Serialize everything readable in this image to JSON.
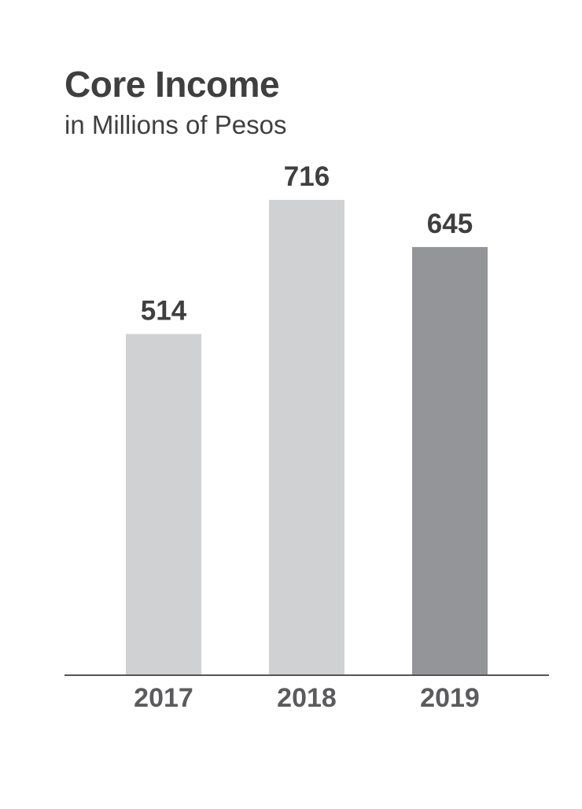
{
  "chart_data": {
    "type": "bar",
    "title": "Core Income",
    "subtitle": "in Millions of Pesos",
    "categories": [
      "2017",
      "2018",
      "2019"
    ],
    "values": [
      514,
      716,
      645
    ],
    "value_labels": [
      "514",
      "716",
      "645"
    ],
    "bar_colors": [
      "#d0d1d3",
      "#d0d1d3",
      "#949598"
    ],
    "label_color": "#3f3f40",
    "tick_color": "#5b5b5d",
    "axis_color": "#555555",
    "ylim": [
      0,
      716
    ],
    "grid": false,
    "legend": "none"
  }
}
